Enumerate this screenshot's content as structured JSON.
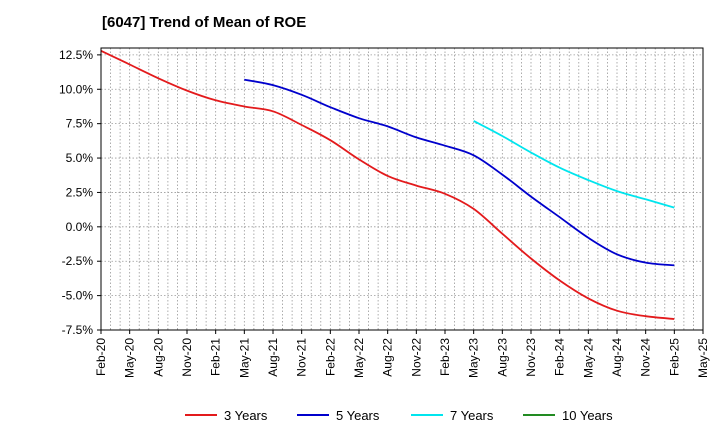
{
  "chart_data": {
    "type": "line",
    "title": "[6047]  Trend of Mean of ROE",
    "xlabel": "",
    "ylabel": "",
    "ylim": [
      -7.5,
      13.0
    ],
    "y_ticks": [
      "12.5%",
      "10.0%",
      "7.5%",
      "5.0%",
      "2.5%",
      "0.0%",
      "-2.5%",
      "-5.0%",
      "-7.5%"
    ],
    "y_tick_values": [
      12.5,
      10.0,
      7.5,
      5.0,
      2.5,
      0.0,
      -2.5,
      -5.0,
      -7.5
    ],
    "categories": [
      "Feb-20",
      "May-20",
      "Aug-20",
      "Nov-20",
      "Feb-21",
      "May-21",
      "Aug-21",
      "Nov-21",
      "Feb-22",
      "May-22",
      "Aug-22",
      "Nov-22",
      "Feb-23",
      "May-23",
      "Aug-23",
      "Nov-23",
      "Feb-24",
      "May-24",
      "Aug-24",
      "Nov-24",
      "Feb-25",
      "May-25"
    ],
    "grid": true,
    "legend_position": "bottom",
    "series": [
      {
        "name": "3 Years",
        "color": "#e31a1c",
        "values": [
          12.8,
          11.8,
          10.8,
          9.9,
          9.2,
          8.75,
          8.4,
          7.4,
          6.3,
          4.9,
          3.7,
          3.0,
          2.4,
          1.3,
          -0.5,
          -2.3,
          -3.9,
          -5.2,
          -6.1,
          -6.5,
          -6.7,
          null
        ]
      },
      {
        "name": "5 Years",
        "color": "#0000cc",
        "values": [
          null,
          null,
          null,
          null,
          null,
          10.7,
          10.3,
          9.6,
          8.7,
          7.9,
          7.3,
          6.5,
          5.9,
          5.2,
          3.8,
          2.2,
          0.7,
          -0.8,
          -2.0,
          -2.6,
          -2.8,
          null
        ]
      },
      {
        "name": "7 Years",
        "color": "#00e5ee",
        "values": [
          null,
          null,
          null,
          null,
          null,
          null,
          null,
          null,
          null,
          null,
          null,
          null,
          null,
          7.7,
          6.6,
          5.4,
          4.3,
          3.4,
          2.6,
          2.0,
          1.4,
          null
        ]
      },
      {
        "name": "10 Years",
        "color": "#228b22",
        "values": [
          null,
          null,
          null,
          null,
          null,
          null,
          null,
          null,
          null,
          null,
          null,
          null,
          null,
          null,
          null,
          null,
          null,
          null,
          null,
          null,
          null,
          null
        ]
      }
    ]
  }
}
